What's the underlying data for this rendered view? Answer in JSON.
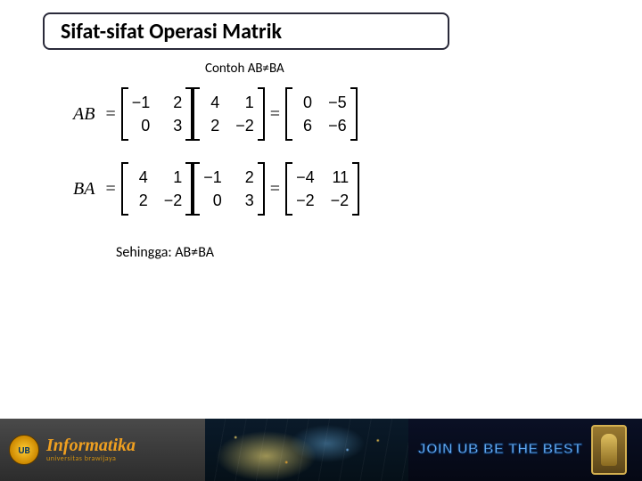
{
  "title": "Sifat-sifat Operasi Matrik",
  "subtitle": "Contoh AB≠BA",
  "conclusion": "Sehingga: AB≠BA",
  "equations": {
    "ab": {
      "label": "AB",
      "m1": [
        [
          "−1",
          "2"
        ],
        [
          "0",
          "3"
        ]
      ],
      "m2": [
        [
          "4",
          "1"
        ],
        [
          "2",
          "−2"
        ]
      ],
      "result": [
        [
          "0",
          "−5"
        ],
        [
          "6",
          "−6"
        ]
      ]
    },
    "ba": {
      "label": "BA",
      "m1": [
        [
          "4",
          "1"
        ],
        [
          "2",
          "−2"
        ]
      ],
      "m2": [
        [
          "−1",
          "2"
        ],
        [
          "0",
          "3"
        ]
      ],
      "result": [
        [
          "−4",
          "11"
        ],
        [
          "−2",
          "−2"
        ]
      ]
    }
  },
  "footer": {
    "badge": "UB",
    "brand_main": "Informatika",
    "brand_sub": "universitas brawijaya",
    "slogan": "JOIN UB BE THE BEST"
  },
  "colors": {
    "title_border": "#2a2a3a",
    "text": "#000000",
    "brand_color": "#f0a020",
    "slogan_color": "#6bb6ff",
    "footer_left_bg": "#2c2c2c",
    "footer_right_bg": "#050814"
  }
}
